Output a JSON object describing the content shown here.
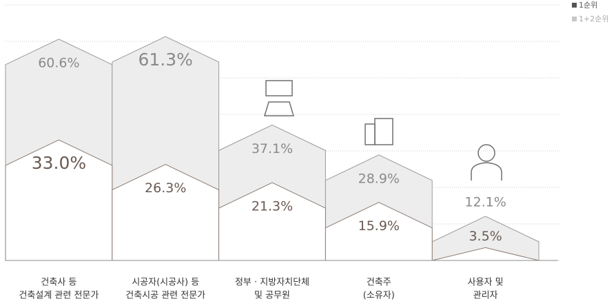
{
  "chart_data": {
    "type": "house",
    "categories": [
      [
        "건축사 등",
        "건축설계 관련 전문가"
      ],
      [
        "시공자(시공사) 등",
        "건축시공 관련 전문가"
      ],
      [
        "정부 · 지방자치단체",
        "및 공무원"
      ],
      [
        "건축주",
        "(소유자)"
      ],
      [
        "사용자 및",
        "관리자"
      ]
    ],
    "series": [
      {
        "name": "1순위",
        "color": "#8c7b72",
        "values": [
          33.0,
          26.3,
          21.3,
          15.9,
          3.5
        ],
        "value_labels": [
          "33.0%",
          "26.3%",
          "21.3%",
          "15.9%",
          "3.5%"
        ]
      },
      {
        "name": "1+2순위",
        "color": "#c8c8c8",
        "values": [
          60.6,
          61.3,
          37.1,
          28.9,
          12.1
        ],
        "value_labels": [
          "60.6%",
          "61.3%",
          "37.1%",
          "28.9%",
          "12.1%"
        ]
      }
    ],
    "ylim": [
      0,
      70
    ],
    "yticks": [
      0,
      10,
      20,
      30,
      40,
      50,
      60,
      70
    ],
    "grid": true,
    "legend": "top-right"
  }
}
